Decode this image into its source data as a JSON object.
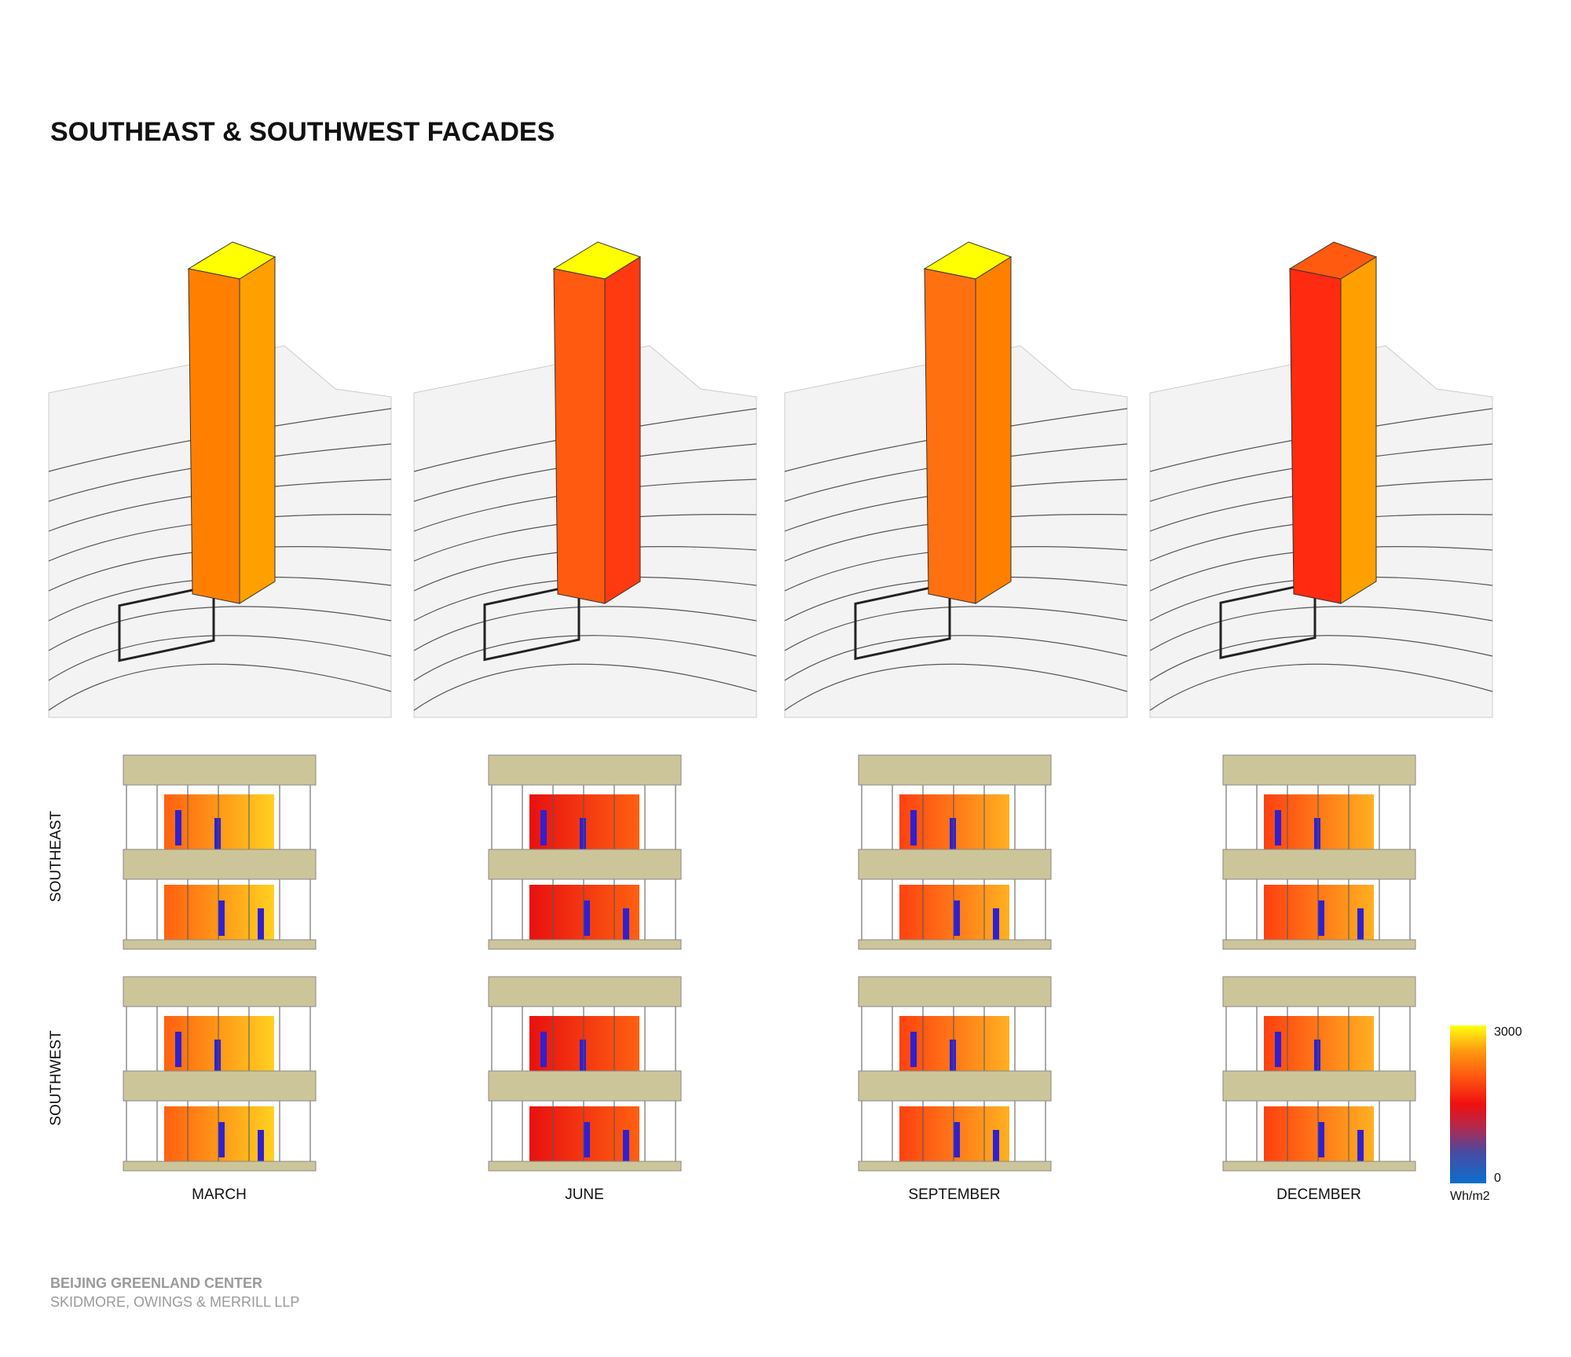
{
  "title": "SOUTHEAST & SOUTHWEST FACADES",
  "rows": [
    "SOUTHEAST",
    "SOUTHWEST"
  ],
  "months": [
    "MARCH",
    "JUNE",
    "SEPTEMBER",
    "DECEMBER"
  ],
  "legend": {
    "max": 3000,
    "min": 0,
    "unit": "Wh/m2"
  },
  "footer": {
    "project": "BEIJING GREENLAND CENTER",
    "firm": "SKIDMORE, OWINGS & MERRILL LLP"
  }
}
